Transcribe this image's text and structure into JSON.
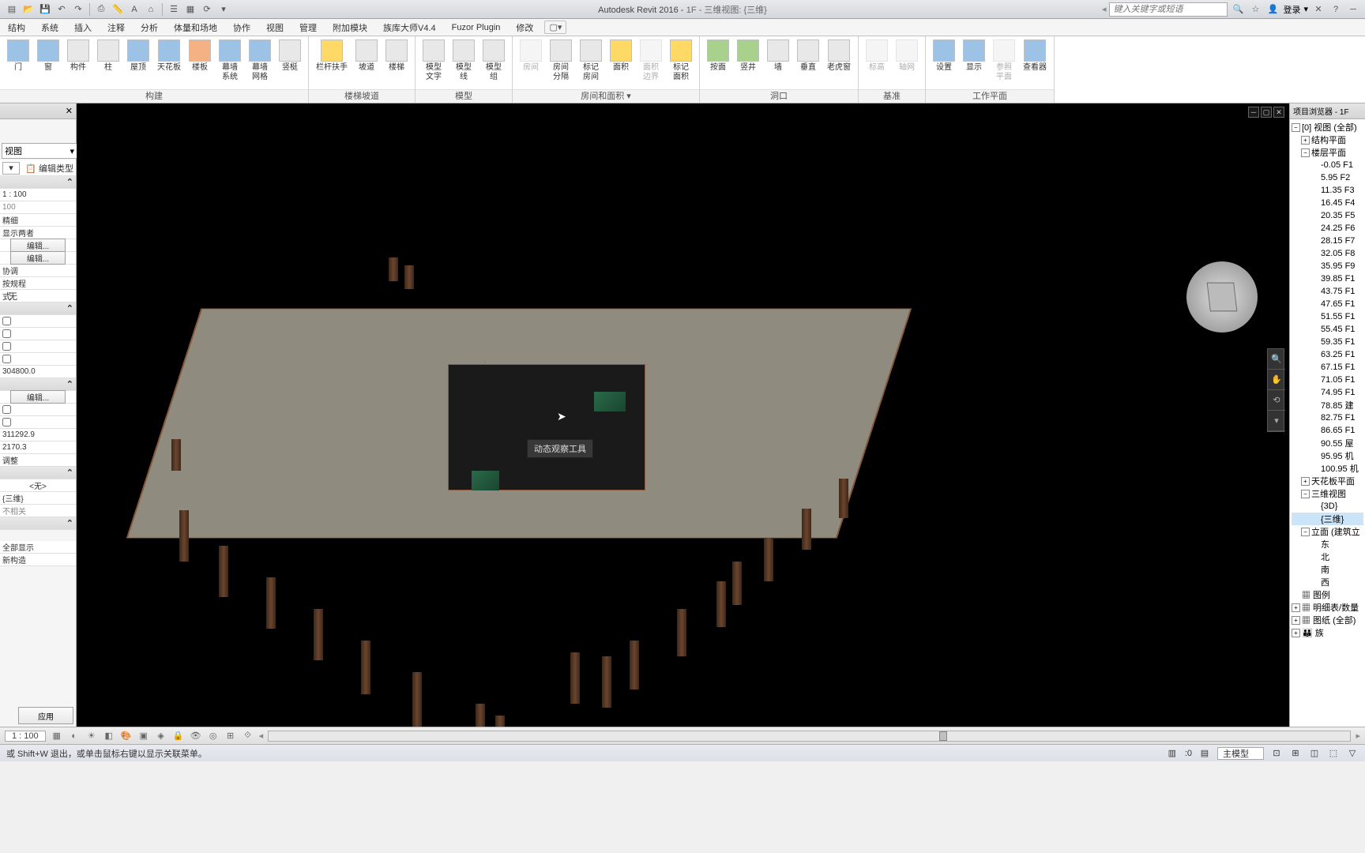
{
  "app": {
    "title": "Autodesk Revit 2016 -",
    "doc": "1F - 三维视图: {三维}",
    "search_placeholder": "键入关键字或短语",
    "login": "登录"
  },
  "tabs": [
    "结构",
    "系统",
    "插入",
    "注释",
    "分析",
    "体量和场地",
    "协作",
    "视图",
    "管理",
    "附加模块",
    "族库大师V4.4",
    "Fuzor Plugin",
    "修改"
  ],
  "ribbon_groups": [
    {
      "label": "构建",
      "items": [
        {
          "t": "门",
          "c": "blue"
        },
        {
          "t": "窗",
          "c": "blue"
        },
        {
          "t": "构件",
          "c": ""
        },
        {
          "t": "柱",
          "c": ""
        },
        {
          "t": "屋顶",
          "c": "blue"
        },
        {
          "t": "天花板",
          "c": "blue"
        },
        {
          "t": "楼板",
          "c": "orange"
        },
        {
          "t": "幕墙\n系统",
          "c": "blue"
        },
        {
          "t": "幕墙\n网格",
          "c": "blue"
        },
        {
          "t": "竖梃",
          "c": ""
        }
      ]
    },
    {
      "label": "楼梯坡道",
      "items": [
        {
          "t": "栏杆扶手",
          "c": "yellow"
        },
        {
          "t": "坡道",
          "c": ""
        },
        {
          "t": "楼梯",
          "c": ""
        }
      ]
    },
    {
      "label": "模型",
      "items": [
        {
          "t": "模型\n文字",
          "c": ""
        },
        {
          "t": "模型\n线",
          "c": ""
        },
        {
          "t": "模型\n组",
          "c": ""
        }
      ]
    },
    {
      "label": "房间和面积 ▾",
      "items": [
        {
          "t": "房间",
          "c": "",
          "d": true
        },
        {
          "t": "房间\n分隔",
          "c": ""
        },
        {
          "t": "标记\n房间",
          "c": ""
        },
        {
          "t": "面积",
          "c": "yellow"
        },
        {
          "t": "面积\n边界",
          "c": "",
          "d": true
        },
        {
          "t": "标记\n面积",
          "c": "yellow"
        }
      ]
    },
    {
      "label": "洞口",
      "items": [
        {
          "t": "按面",
          "c": "green"
        },
        {
          "t": "竖井",
          "c": "green"
        },
        {
          "t": "墙",
          "c": ""
        },
        {
          "t": "垂直",
          "c": ""
        },
        {
          "t": "老虎窗",
          "c": ""
        }
      ]
    },
    {
      "label": "基准",
      "items": [
        {
          "t": "标高",
          "c": "",
          "d": true
        },
        {
          "t": "轴网",
          "c": "",
          "d": true
        }
      ]
    },
    {
      "label": "工作平面",
      "items": [
        {
          "t": "设置",
          "c": "blue"
        },
        {
          "t": "显示",
          "c": "blue"
        },
        {
          "t": "参照\n平面",
          "c": "",
          "d": true
        },
        {
          "t": "查看器",
          "c": "blue"
        }
      ]
    }
  ],
  "props": {
    "type_sel": "视图",
    "edit_type": "编辑类型",
    "scale": "1 : 100",
    "scale_val": "100",
    "detail": "精细",
    "display": "显示两者",
    "edit": "编辑...",
    "coord": "协调",
    "discipline": "按规程",
    "style": "无",
    "num1": "304800.0",
    "none": "<无>",
    "view3d": "{三维}",
    "unrel": "不相关",
    "num2": "311292.9",
    "num3": "2170.3",
    "adjust": "调整",
    "show_all": "全部显示",
    "new_build": "新构造",
    "apply": "应用"
  },
  "browser": {
    "title": "项目浏览器 - 1F",
    "root": "视图 (全部)",
    "struct": "结构平面",
    "floor": "楼层平面",
    "levels": [
      "-0.05 F1",
      "5.95 F2",
      "11.35 F3",
      "16.45 F4",
      "20.35 F5",
      "24.25 F6",
      "28.15 F7",
      "32.05 F8",
      "35.95 F9",
      "39.85 F1",
      "43.75 F1",
      "47.65 F1",
      "51.55 F1",
      "55.45 F1",
      "59.35 F1",
      "63.25 F1",
      "67.15 F1",
      "71.05 F1",
      "74.95 F1",
      "78.85 建",
      "82.75 F1",
      "86.65 F1",
      "90.55 屋",
      "95.95 机",
      "100.95 机"
    ],
    "ceiling": "天花板平面",
    "view3d_g": "三维视图",
    "v3d": "{3D}",
    "v3d_sel": "{三维}",
    "elev": "立面 (建筑立",
    "dirs": [
      "东",
      "北",
      "南",
      "西"
    ],
    "legend": "图例",
    "sched": "明细表/数量",
    "sheets": "图纸 (全部)",
    "families": "族"
  },
  "viewctrl": {
    "scale": "1 : 100"
  },
  "status": {
    "hint": "或 Shift+W 退出，或单击鼠标右键以显示关联菜单。",
    "zero": ":0",
    "model": "主模型"
  },
  "tooltip": "动态观察工具",
  "colors": {
    "bg": "#000000",
    "slab": "#979285",
    "wood": "#8b5a3c",
    "col": "#6b4530"
  }
}
